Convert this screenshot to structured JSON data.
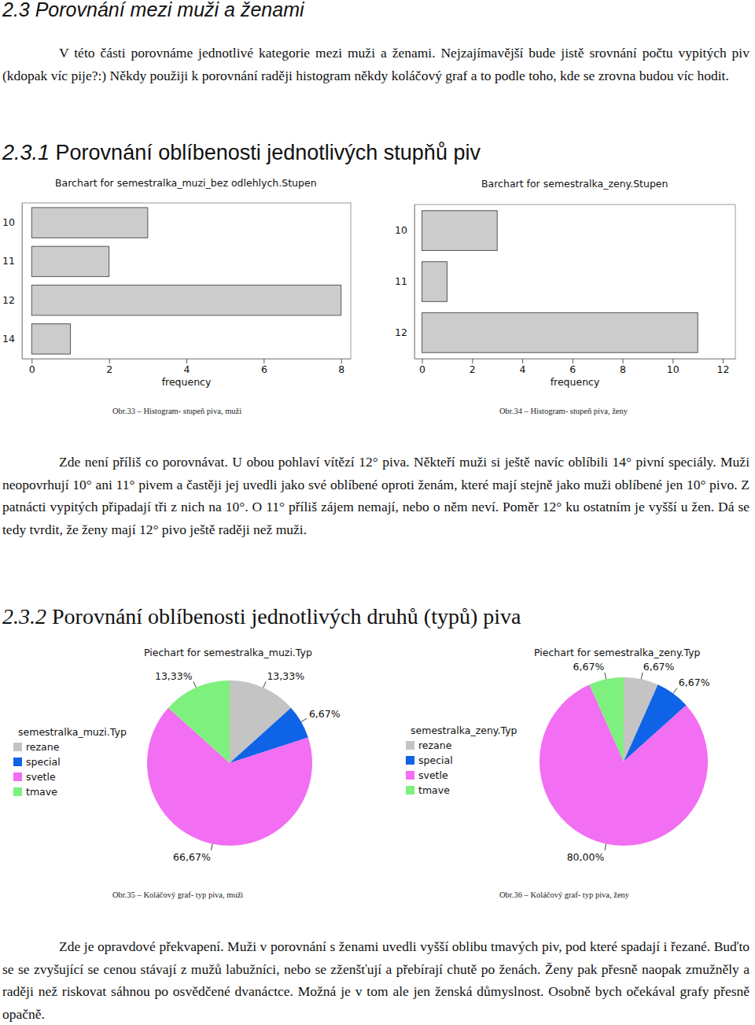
{
  "section": {
    "heading": "2.3 Porovnání mezi muži a ženami",
    "paragraph": "V této části porovnáme jednotlivé kategorie mezi muži a ženami. Nejzajímavější bude jistě srovnání počtu vypitých piv (kdopak víc pije?:) Někdy použiji k porovnání raději histogram někdy koláčový graf a to podle toho, kde se zrovna budou víc hodit."
  },
  "subsections": [
    {
      "number": "2.3.1",
      "title": "Porovnání oblíbenosti jednotlivých stupňů piv",
      "paragraph": "Zde není příliš co porovnávat. U obou pohlaví vítězí 12° piva. Někteří muži si ještě navíc oblíbili 14° pivní speciály. Muži neopovrhují 10° ani 11° pivem a častěji jej uvedli jako své oblíbené oproti ženám, které mají stejně jako muži oblíbené jen 10° pivo. Z patnácti vypitých připadají tři z nich na 10°. O 11° příliš zájem nemají, nebo o něm neví. Poměr 12° ku ostatním je vyšší u žen. Dá se tedy tvrdit, že ženy mají 12° pivo ještě raději než muži."
    },
    {
      "number": "2.3.2",
      "title": "Porovnání oblíbenosti jednotlivých druhů (typů) piva",
      "paragraph": "Zde je opravdové překvapení. Muži v porovnání s ženami uvedli vyšší oblibu tmavých piv, pod které spadají i řezané. Buďto se se zvyšující se cenou stávají z mužů labužníci, nebo se zženšťují a přebírají chutě po ženách. Ženy pak přesně naopak zmužněly a raději než riskovat sáhnou po osvědčené dvanáctce. Možná je v tom ale jen ženská důmyslnost. Osobně bych očekával grafy přesně opačně."
    }
  ],
  "chart_data": [
    {
      "type": "bar",
      "orientation": "horizontal",
      "title": "Barchart for semestralka_muzi_bez odlehlych.Stupen",
      "xlabel": "frequency",
      "caption": "Obr.33 – Histogram- stupeň piva, muži",
      "categories": [
        "10",
        "11",
        "12",
        "14"
      ],
      "values": [
        3,
        2,
        8,
        1
      ],
      "color": "#cccccc",
      "xlim": [
        -0.25,
        8.25
      ],
      "xticks": [
        0,
        2,
        4,
        6,
        8
      ]
    },
    {
      "type": "bar",
      "orientation": "horizontal",
      "title": "Barchart for semestralka_zeny.Stupen",
      "xlabel": "frequency",
      "caption": "Obr.34 – Histogram- stupeň piva, ženy",
      "categories": [
        "10",
        "11",
        "12"
      ],
      "values": [
        3,
        1,
        11
      ],
      "color": "#cccccc",
      "xlim": [
        -0.3,
        12.5
      ],
      "xticks": [
        0,
        2,
        4,
        6,
        8,
        10,
        12
      ]
    },
    {
      "type": "pie",
      "title": "Piechart for semestralka_muzi.Typ",
      "legend_title": "semestralka_muzi.Typ",
      "caption": "Obr.35 – Koláčový graf- typ piva, muži",
      "categories": [
        "rezane",
        "special",
        "svetle",
        "tmave"
      ],
      "values": [
        13.33,
        6.67,
        66.67,
        13.33
      ],
      "value_labels": [
        "13,33%",
        "6,67%",
        "66,67%",
        "13,33%"
      ],
      "colors": [
        "#c4c4c4",
        "#0f63e6",
        "#f26ef2",
        "#7ef07e"
      ],
      "data_labels": true,
      "legend": "left"
    },
    {
      "type": "pie",
      "title": "Piechart for semestralka_zeny.Typ",
      "legend_title": "semestralka_zeny.Typ",
      "caption": "Obr.36 – Koláčový graf- typ piva, ženy",
      "categories": [
        "rezane",
        "special",
        "svetle",
        "tmave"
      ],
      "values": [
        6.67,
        6.67,
        80,
        6.67
      ],
      "value_labels": [
        "6,67%",
        "6,67%",
        "80,00%",
        "6,67%"
      ],
      "colors": [
        "#c4c4c4",
        "#0f63e6",
        "#f26ef2",
        "#7ef07e"
      ],
      "data_labels": true,
      "legend": "left"
    }
  ]
}
